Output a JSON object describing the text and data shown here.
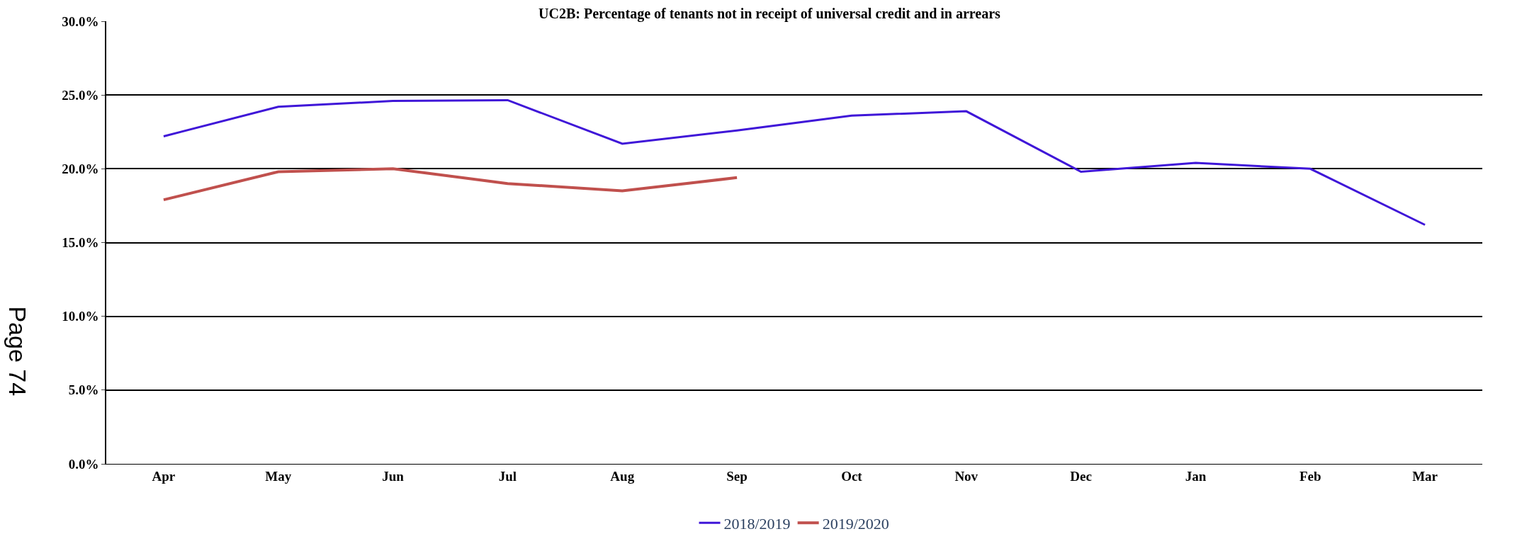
{
  "chart_data": {
    "type": "line",
    "title": "UC2B: Percentage of tenants not in receipt of universal credit and in arrears",
    "categories": [
      "Apr",
      "May",
      "Jun",
      "Jul",
      "Aug",
      "Sep",
      "Oct",
      "Nov",
      "Dec",
      "Jan",
      "Feb",
      "Mar"
    ],
    "series": [
      {
        "name": "2018/2019",
        "color": "#3f16d8",
        "values": [
          22.2,
          24.2,
          24.6,
          24.65,
          21.7,
          22.6,
          23.6,
          23.9,
          19.8,
          20.4,
          20.0,
          16.2
        ]
      },
      {
        "name": "2019/2020",
        "color": "#c0504d",
        "values": [
          17.9,
          19.8,
          20.0,
          19.0,
          18.5,
          19.4,
          null,
          null,
          null,
          null,
          null,
          null
        ]
      }
    ],
    "ylim": [
      0,
      30
    ],
    "yticks": [
      {
        "value": 0,
        "label": "0.0%"
      },
      {
        "value": 5,
        "label": "5.0%"
      },
      {
        "value": 10,
        "label": "10.0%"
      },
      {
        "value": 15,
        "label": "15.0%"
      },
      {
        "value": 20,
        "label": "20.0%"
      },
      {
        "value": 25,
        "label": "25.0%"
      },
      {
        "value": 30,
        "label": "30.0%"
      }
    ],
    "grid": "y",
    "legend": "bottom",
    "marker": "none",
    "line_style": "solid",
    "annotations": [
      "Page 74"
    ]
  }
}
